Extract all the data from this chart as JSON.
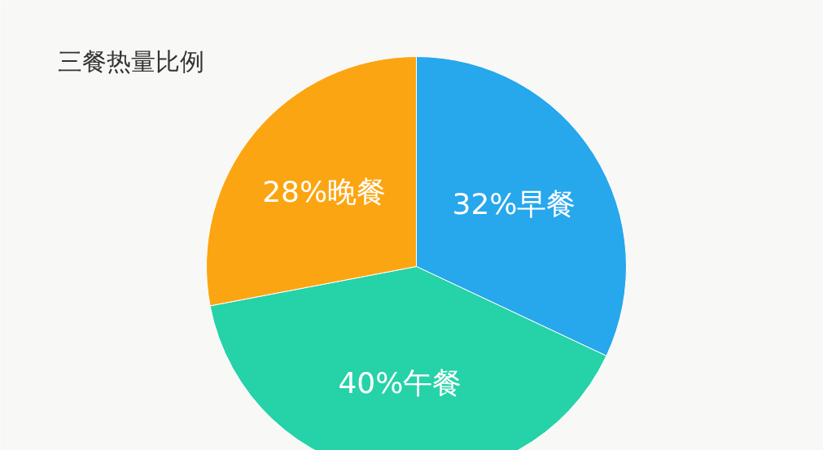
{
  "chart_data": {
    "type": "pie",
    "title": "三餐热量比例",
    "categories": [
      "早餐",
      "午餐",
      "晚餐"
    ],
    "values": [
      32,
      40,
      28
    ],
    "value_labels": [
      "32%",
      "40%",
      "28%"
    ],
    "colors": [
      "#27a7ec",
      "#26d2a8",
      "#fca512"
    ],
    "legend": false
  }
}
